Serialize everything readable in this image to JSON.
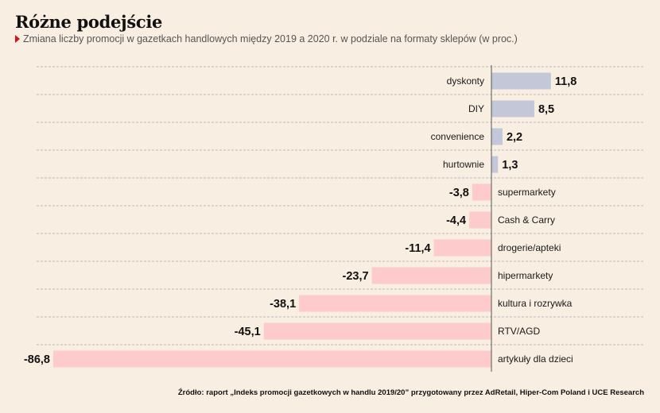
{
  "title": "Różne podejście",
  "subtitle": "Zmiana liczby promocji w gazetkach handlowych między 2019 a 2020 r. w podziale na formaty sklepów (w proc.)",
  "source": "Źródło: raport „Indeks promocji gazetkowych w handlu 2019/20” przygotowany przez AdRetail, Hiper-Com Poland i UCE Research",
  "colors": {
    "positive": "#c3c8d9",
    "negative": "#fdcbcb",
    "axis": "#555555",
    "gridline": "#aaaaaa",
    "marker": "#d4141c"
  },
  "chart_data": {
    "type": "bar",
    "orientation": "horizontal",
    "categories": [
      "dyskonty",
      "DIY",
      "convenience",
      "hurtownie",
      "supermarkety",
      "Cash & Carry",
      "drogerie/apteki",
      "hipermarkety",
      "kultura i rozrywka",
      "RTV/AGD",
      "artykuły dla dzieci"
    ],
    "values": [
      11.8,
      8.5,
      2.2,
      1.3,
      -3.8,
      -4.4,
      -11.4,
      -23.7,
      -38.1,
      -45.1,
      -86.8
    ],
    "value_labels": [
      "11,8",
      "8,5",
      "2,2",
      "1,3",
      "-3,8",
      "-4,4",
      "-11,4",
      "-23,7",
      "-38,1",
      "-45,1",
      "-86,8"
    ],
    "xlim": [
      -86.8,
      11.8
    ],
    "grid": true,
    "legend": "none"
  }
}
